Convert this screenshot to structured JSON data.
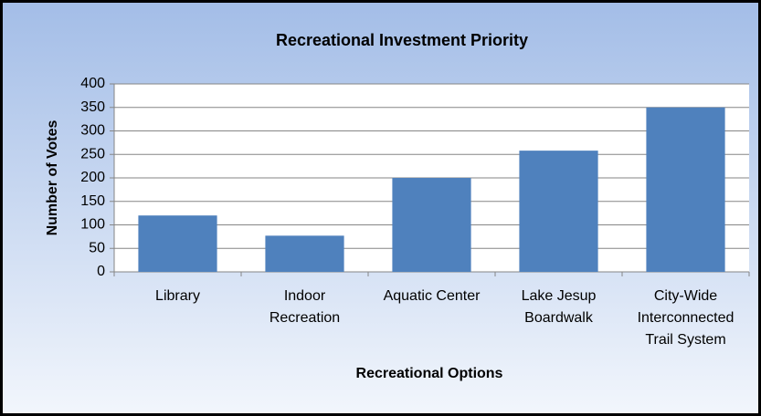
{
  "chart_data": {
    "type": "bar",
    "title": "Recreational Investment Priority",
    "x_label": "Recreational Options",
    "y_label": "Number of Votes",
    "categories": [
      "Library",
      "Indoor Recreation",
      "Aquatic Center",
      "Lake Jesup Boardwalk",
      "City-Wide Interconnected Trail System"
    ],
    "values": [
      120,
      77,
      200,
      258,
      350
    ],
    "color": "#4f81bd",
    "ylim": [
      0,
      400
    ],
    "yticks": [
      0,
      50,
      100,
      150,
      200,
      250,
      300,
      350,
      400
    ],
    "grid": true
  }
}
